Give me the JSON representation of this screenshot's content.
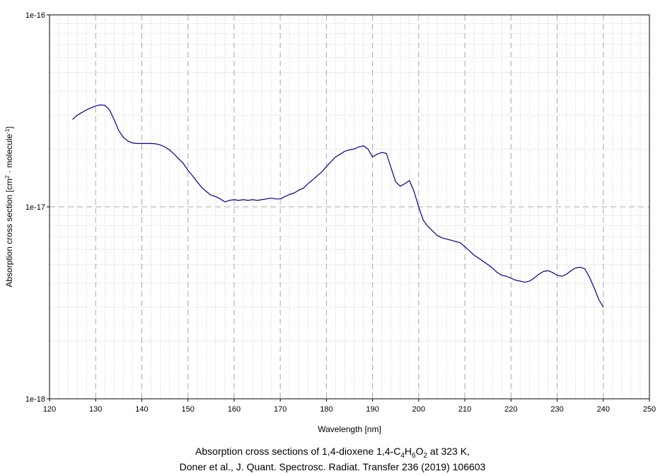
{
  "chart_data": {
    "type": "line",
    "xlabel": "Wavelength [nm]",
    "ylabel_main": "Absorption cross section [cm",
    "ylabel_sup1": "2",
    "ylabel_mid": " · molecule",
    "ylabel_sup2": "-1",
    "ylabel_end": "]",
    "xlim": [
      120,
      250
    ],
    "ylim": [
      1e-18,
      1e-16
    ],
    "yscale": "log",
    "grid": true,
    "x_ticks": [
      "120",
      "130",
      "140",
      "150",
      "160",
      "170",
      "180",
      "190",
      "200",
      "210",
      "220",
      "230",
      "240",
      "250"
    ],
    "y_ticks": [
      "1e-18",
      "1e-17",
      "1e-16"
    ],
    "line_color": "#00008b",
    "series": [
      {
        "x": [
          125,
          126,
          127,
          128,
          129,
          130,
          131,
          132,
          133,
          134,
          135,
          136,
          137,
          138,
          139,
          140,
          141,
          142,
          143,
          144,
          145,
          146,
          147,
          148,
          149,
          150,
          151,
          152,
          153,
          154,
          155,
          156,
          157,
          158,
          159,
          160,
          161,
          162,
          163,
          164,
          165,
          166,
          167,
          168,
          169,
          170,
          171,
          172,
          173,
          174,
          175,
          176,
          177,
          178,
          179,
          180,
          181,
          182,
          183,
          184,
          185,
          186,
          187,
          188,
          189,
          190,
          191,
          192,
          193,
          194,
          195,
          196,
          197,
          198,
          199,
          200,
          201,
          202,
          203,
          204,
          205,
          206,
          207,
          208,
          209,
          210,
          211,
          212,
          213,
          214,
          215,
          216,
          217,
          218,
          219,
          220,
          221,
          222,
          223,
          224,
          225,
          226,
          227,
          228,
          229,
          230,
          231,
          232,
          233,
          234,
          235,
          236,
          237,
          238,
          239,
          240
        ],
        "y": [
          2.85e-17,
          3e-17,
          3.1e-17,
          3.2e-17,
          3.28e-17,
          3.35e-17,
          3.4e-17,
          3.38e-17,
          3.2e-17,
          2.85e-17,
          2.5e-17,
          2.3e-17,
          2.2e-17,
          2.15e-17,
          2.14e-17,
          2.14e-17,
          2.14e-17,
          2.14e-17,
          2.13e-17,
          2.1e-17,
          2.05e-17,
          1.98e-17,
          1.88e-17,
          1.78e-17,
          1.68e-17,
          1.55e-17,
          1.45e-17,
          1.35e-17,
          1.26e-17,
          1.2e-17,
          1.15e-17,
          1.13e-17,
          1.1e-17,
          1.06e-17,
          1.08e-17,
          1.09e-17,
          1.08e-17,
          1.09e-17,
          1.08e-17,
          1.09e-17,
          1.08e-17,
          1.09e-17,
          1.1e-17,
          1.11e-17,
          1.1e-17,
          1.1e-17,
          1.13e-17,
          1.16e-17,
          1.18e-17,
          1.22e-17,
          1.25e-17,
          1.32e-17,
          1.38e-17,
          1.45e-17,
          1.52e-17,
          1.62e-17,
          1.72e-17,
          1.82e-17,
          1.88e-17,
          1.95e-17,
          1.98e-17,
          2e-17,
          2.05e-17,
          2.08e-17,
          2e-17,
          1.82e-17,
          1.88e-17,
          1.92e-17,
          1.9e-17,
          1.6e-17,
          1.35e-17,
          1.28e-17,
          1.32e-17,
          1.37e-17,
          1.2e-17,
          1e-17,
          8.5e-18,
          7.9e-18,
          7.5e-18,
          7.1e-18,
          6.9e-18,
          6.8e-18,
          6.7e-18,
          6.6e-18,
          6.5e-18,
          6.2e-18,
          5.9e-18,
          5.6e-18,
          5.4e-18,
          5.2e-18,
          5e-18,
          4.8e-18,
          4.55e-18,
          4.4e-18,
          4.35e-18,
          4.25e-18,
          4.15e-18,
          4.1e-18,
          4.05e-18,
          4.1e-18,
          4.25e-18,
          4.45e-18,
          4.6e-18,
          4.65e-18,
          4.55e-18,
          4.4e-18,
          4.35e-18,
          4.45e-18,
          4.65e-18,
          4.8e-18,
          4.85e-18,
          4.75e-18,
          4.3e-18,
          3.8e-18,
          3.3e-18,
          3e-18
        ]
      }
    ]
  },
  "caption": {
    "line1_pre": "Absorption cross sections of 1,4-dioxene 1,4-C",
    "sub1": "4",
    "mid1": "H",
    "sub2": "6",
    "mid2": "O",
    "sub3": "2",
    "line1_post": " at 323 K,",
    "line2": "Doner et al., J. Quant. Spectrosc. Radiat. Transfer 236 (2019) 106603"
  }
}
